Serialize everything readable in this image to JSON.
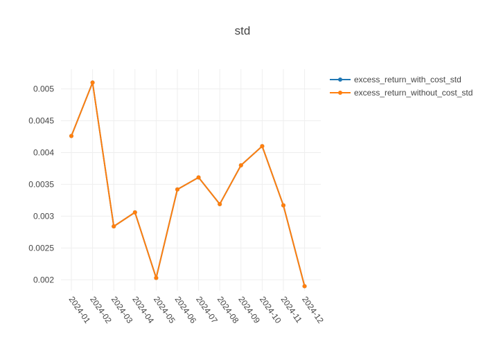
{
  "chart_data": {
    "type": "line",
    "title": "std",
    "xlabel": "",
    "ylabel": "",
    "categories": [
      "2024-01",
      "2024-02",
      "2024-03",
      "2024-04",
      "2024-05",
      "2024-06",
      "2024-07",
      "2024-08",
      "2024-09",
      "2024-10",
      "2024-11",
      "2024-12"
    ],
    "yticks": [
      "0.002",
      "0.0025",
      "0.003",
      "0.0035",
      "0.004",
      "0.0045",
      "0.005"
    ],
    "ylim": [
      0.00183,
      0.00531
    ],
    "grid": true,
    "legend_position": "top-right",
    "series": [
      {
        "name": "excess_return_with_cost_std",
        "color": "#1f77b4",
        "values": [
          0.00426,
          0.0051,
          0.00284,
          0.00306,
          0.00203,
          0.00342,
          0.00361,
          0.00319,
          0.0038,
          0.0041,
          0.00317,
          0.0019
        ]
      },
      {
        "name": "excess_return_without_cost_std",
        "color": "#ff7f0e",
        "values": [
          0.00426,
          0.0051,
          0.00284,
          0.00306,
          0.00203,
          0.00342,
          0.00361,
          0.00319,
          0.0038,
          0.0041,
          0.00317,
          0.0019
        ]
      }
    ]
  }
}
